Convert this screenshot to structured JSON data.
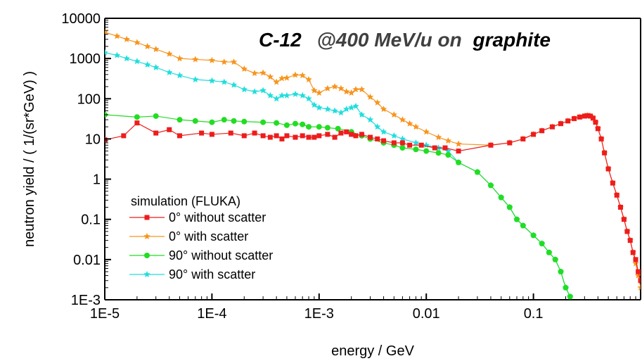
{
  "chart_data": {
    "type": "scatter",
    "title_parts": {
      "part1": "C-12",
      "part2": "@400 MeV/u on",
      "part3": "graphite"
    },
    "title_colors": {
      "part1": "#000000",
      "part2": "#404040",
      "part3": "#000000"
    },
    "xlabel": "energy / GeV",
    "ylabel": "neutron yield / ( 1/(sr*GeV) )",
    "x_scale": "log",
    "y_scale": "log",
    "xlim": [
      1e-05,
      1
    ],
    "ylim": [
      0.001,
      10000
    ],
    "x_ticks": [
      {
        "value": 1e-05,
        "label": "1E-5"
      },
      {
        "value": 0.0001,
        "label": "1E-4"
      },
      {
        "value": 0.001,
        "label": "1E-3"
      },
      {
        "value": 0.01,
        "label": "0.01"
      },
      {
        "value": 0.1,
        "label": "0.1"
      }
    ],
    "y_ticks": [
      {
        "value": 10000,
        "label": "10000"
      },
      {
        "value": 1000,
        "label": "1000"
      },
      {
        "value": 100,
        "label": "100"
      },
      {
        "value": 10,
        "label": "10"
      },
      {
        "value": 1,
        "label": "1"
      },
      {
        "value": 0.1,
        "label": "0.1"
      },
      {
        "value": 0.01,
        "label": "0.01"
      },
      {
        "value": 0.001,
        "label": "1E-3"
      }
    ],
    "grid": false,
    "legend": {
      "title": "simulation (FLUKA)",
      "position": "bottom-left"
    },
    "series": [
      {
        "name": "0° without scatter",
        "color": "#ee1c1c",
        "marker": "square",
        "points": [
          [
            1e-05,
            9.5
          ],
          [
            1.5e-05,
            12
          ],
          [
            2e-05,
            25
          ],
          [
            3e-05,
            14
          ],
          [
            4e-05,
            17
          ],
          [
            5e-05,
            12
          ],
          [
            8e-05,
            14
          ],
          [
            0.0001,
            13
          ],
          [
            0.00015,
            14
          ],
          [
            0.0002,
            12
          ],
          [
            0.00025,
            14
          ],
          [
            0.0003,
            12
          ],
          [
            0.00035,
            11
          ],
          [
            0.0004,
            12
          ],
          [
            0.00045,
            10
          ],
          [
            0.0005,
            12
          ],
          [
            0.0006,
            11
          ],
          [
            0.0007,
            12
          ],
          [
            0.0008,
            11
          ],
          [
            0.0009,
            11
          ],
          [
            0.001,
            12
          ],
          [
            0.0012,
            13
          ],
          [
            0.0014,
            11
          ],
          [
            0.0016,
            14
          ],
          [
            0.0018,
            15
          ],
          [
            0.002,
            13
          ],
          [
            0.0022,
            12
          ],
          [
            0.0025,
            13
          ],
          [
            0.003,
            11
          ],
          [
            0.0035,
            10
          ],
          [
            0.004,
            9
          ],
          [
            0.005,
            8
          ],
          [
            0.006,
            8
          ],
          [
            0.007,
            7
          ],
          [
            0.009,
            7
          ],
          [
            0.012,
            6
          ],
          [
            0.015,
            6
          ],
          [
            0.02,
            5
          ],
          [
            0.04,
            7
          ],
          [
            0.06,
            8
          ],
          [
            0.08,
            10
          ],
          [
            0.1,
            13
          ],
          [
            0.12,
            16
          ],
          [
            0.15,
            20
          ],
          [
            0.18,
            24
          ],
          [
            0.21,
            28
          ],
          [
            0.24,
            32
          ],
          [
            0.27,
            35
          ],
          [
            0.3,
            37
          ],
          [
            0.32,
            38
          ],
          [
            0.34,
            37
          ],
          [
            0.36,
            33
          ],
          [
            0.38,
            26
          ],
          [
            0.4,
            18
          ],
          [
            0.43,
            10
          ],
          [
            0.46,
            4.5
          ],
          [
            0.5,
            1.8
          ],
          [
            0.55,
            0.8
          ],
          [
            0.6,
            0.4
          ],
          [
            0.65,
            0.2
          ],
          [
            0.7,
            0.1
          ],
          [
            0.75,
            0.05
          ],
          [
            0.8,
            0.03
          ],
          [
            0.85,
            0.015
          ],
          [
            0.9,
            0.01
          ],
          [
            0.95,
            0.005
          ],
          [
            1.0,
            0.003
          ]
        ]
      },
      {
        "name": "0° with scatter",
        "color": "#f7941d",
        "marker": "star",
        "points": [
          [
            1e-05,
            4500
          ],
          [
            1.3e-05,
            3600
          ],
          [
            1.6e-05,
            3000
          ],
          [
            2e-05,
            2500
          ],
          [
            2.5e-05,
            2000
          ],
          [
            3e-05,
            1700
          ],
          [
            4e-05,
            1300
          ],
          [
            5e-05,
            1000
          ],
          [
            7e-05,
            950
          ],
          [
            0.0001,
            900
          ],
          [
            0.00013,
            820
          ],
          [
            0.00016,
            820
          ],
          [
            0.0002,
            550
          ],
          [
            0.00025,
            430
          ],
          [
            0.0003,
            440
          ],
          [
            0.00035,
            350
          ],
          [
            0.0004,
            260
          ],
          [
            0.00045,
            320
          ],
          [
            0.0005,
            330
          ],
          [
            0.0006,
            390
          ],
          [
            0.0007,
            380
          ],
          [
            0.0008,
            300
          ],
          [
            0.0009,
            160
          ],
          [
            0.001,
            140
          ],
          [
            0.0012,
            180
          ],
          [
            0.0014,
            200
          ],
          [
            0.0016,
            180
          ],
          [
            0.0018,
            150
          ],
          [
            0.002,
            140
          ],
          [
            0.0022,
            170
          ],
          [
            0.0025,
            170
          ],
          [
            0.003,
            110
          ],
          [
            0.0035,
            80
          ],
          [
            0.004,
            55
          ],
          [
            0.005,
            40
          ],
          [
            0.006,
            30
          ],
          [
            0.007,
            24
          ],
          [
            0.008,
            20
          ],
          [
            0.01,
            15
          ],
          [
            0.013,
            11
          ],
          [
            0.016,
            9
          ],
          [
            0.02,
            7.5
          ],
          [
            0.04,
            7
          ],
          [
            0.06,
            8
          ],
          [
            0.08,
            10
          ],
          [
            0.1,
            13
          ],
          [
            0.12,
            16
          ],
          [
            0.15,
            20
          ],
          [
            0.18,
            24
          ],
          [
            0.21,
            28
          ],
          [
            0.24,
            32
          ],
          [
            0.27,
            35
          ],
          [
            0.3,
            37
          ],
          [
            0.32,
            38
          ],
          [
            0.34,
            37
          ],
          [
            0.36,
            33
          ],
          [
            0.38,
            26
          ],
          [
            0.4,
            18
          ],
          [
            0.43,
            10
          ],
          [
            0.46,
            4.5
          ],
          [
            0.5,
            1.8
          ],
          [
            0.55,
            0.8
          ],
          [
            0.6,
            0.4
          ],
          [
            0.65,
            0.2
          ],
          [
            0.7,
            0.1
          ],
          [
            0.75,
            0.05
          ],
          [
            0.8,
            0.03
          ],
          [
            0.85,
            0.015
          ],
          [
            0.9,
            0.008
          ],
          [
            0.95,
            0.004
          ],
          [
            1.0,
            0.002
          ]
        ]
      },
      {
        "name": "90° without scatter",
        "color": "#22dd22",
        "marker": "circle",
        "points": [
          [
            1e-05,
            40
          ],
          [
            2e-05,
            35
          ],
          [
            3e-05,
            37
          ],
          [
            5e-05,
            30
          ],
          [
            7e-05,
            28
          ],
          [
            0.0001,
            26
          ],
          [
            0.00013,
            30
          ],
          [
            0.00016,
            28
          ],
          [
            0.0002,
            27
          ],
          [
            0.0003,
            26
          ],
          [
            0.0004,
            25
          ],
          [
            0.0005,
            22
          ],
          [
            0.0006,
            24
          ],
          [
            0.0007,
            23
          ],
          [
            0.0008,
            20
          ],
          [
            0.001,
            20
          ],
          [
            0.0012,
            19
          ],
          [
            0.0015,
            18
          ],
          [
            0.002,
            15
          ],
          [
            0.0025,
            12
          ],
          [
            0.003,
            10
          ],
          [
            0.004,
            8
          ],
          [
            0.005,
            7
          ],
          [
            0.006,
            6
          ],
          [
            0.008,
            5.5
          ],
          [
            0.01,
            5
          ],
          [
            0.013,
            4.5
          ],
          [
            0.016,
            4
          ],
          [
            0.02,
            2.6
          ],
          [
            0.03,
            1.5
          ],
          [
            0.04,
            0.7
          ],
          [
            0.05,
            0.35
          ],
          [
            0.06,
            0.2
          ],
          [
            0.07,
            0.1
          ],
          [
            0.08,
            0.07
          ],
          [
            0.1,
            0.04
          ],
          [
            0.12,
            0.025
          ],
          [
            0.14,
            0.015
          ],
          [
            0.16,
            0.01
          ],
          [
            0.18,
            0.005
          ],
          [
            0.2,
            0.002
          ],
          [
            0.22,
            0.0012
          ]
        ]
      },
      {
        "name": "90° with scatter",
        "color": "#22dddd",
        "marker": "star",
        "points": [
          [
            1e-05,
            1400
          ],
          [
            1.3e-05,
            1200
          ],
          [
            1.6e-05,
            1000
          ],
          [
            2e-05,
            850
          ],
          [
            2.5e-05,
            700
          ],
          [
            3e-05,
            600
          ],
          [
            4e-05,
            450
          ],
          [
            5e-05,
            380
          ],
          [
            7e-05,
            300
          ],
          [
            0.0001,
            280
          ],
          [
            0.00013,
            260
          ],
          [
            0.00016,
            220
          ],
          [
            0.0002,
            170
          ],
          [
            0.00025,
            150
          ],
          [
            0.0003,
            160
          ],
          [
            0.00035,
            120
          ],
          [
            0.0004,
            100
          ],
          [
            0.00045,
            120
          ],
          [
            0.0005,
            120
          ],
          [
            0.0006,
            130
          ],
          [
            0.0007,
            120
          ],
          [
            0.0008,
            100
          ],
          [
            0.0009,
            70
          ],
          [
            0.001,
            60
          ],
          [
            0.0012,
            55
          ],
          [
            0.0014,
            50
          ],
          [
            0.0016,
            45
          ],
          [
            0.0018,
            55
          ],
          [
            0.002,
            60
          ],
          [
            0.0022,
            65
          ],
          [
            0.0025,
            40
          ],
          [
            0.003,
            30
          ],
          [
            0.0035,
            20
          ],
          [
            0.004,
            15
          ],
          [
            0.005,
            12
          ],
          [
            0.006,
            10
          ],
          [
            0.008,
            8
          ],
          [
            0.01,
            7
          ],
          [
            0.013,
            6
          ],
          [
            0.016,
            5
          ],
          [
            0.02,
            2.6
          ],
          [
            0.03,
            1.5
          ],
          [
            0.04,
            0.7
          ],
          [
            0.05,
            0.35
          ],
          [
            0.06,
            0.2
          ],
          [
            0.07,
            0.1
          ],
          [
            0.08,
            0.07
          ],
          [
            0.1,
            0.04
          ],
          [
            0.12,
            0.025
          ],
          [
            0.14,
            0.015
          ],
          [
            0.16,
            0.01
          ],
          [
            0.18,
            0.005
          ],
          [
            0.2,
            0.002
          ],
          [
            0.22,
            0.0012
          ]
        ]
      }
    ]
  }
}
